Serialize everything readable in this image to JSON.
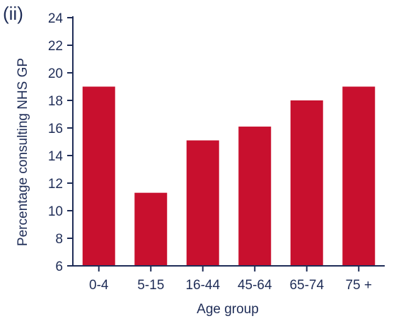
{
  "panel_label": "(ii)",
  "colors": {
    "bar": "#c8102e",
    "axis": "#1f2d57",
    "text": "#1f2d57"
  },
  "chart_data": {
    "type": "bar",
    "title": "",
    "xlabel": "Age group",
    "ylabel": "Percentage consulting NHS GP",
    "categories": [
      "0-4",
      "5-15",
      "16-44",
      "45-64",
      "65-74",
      "75 +"
    ],
    "values": [
      19.0,
      11.3,
      15.1,
      16.1,
      18.0,
      19.0
    ],
    "ylim": [
      6,
      24
    ],
    "yticks": [
      6,
      8,
      10,
      12,
      14,
      16,
      18,
      20,
      22,
      24
    ],
    "grid": false,
    "legend": "none"
  }
}
